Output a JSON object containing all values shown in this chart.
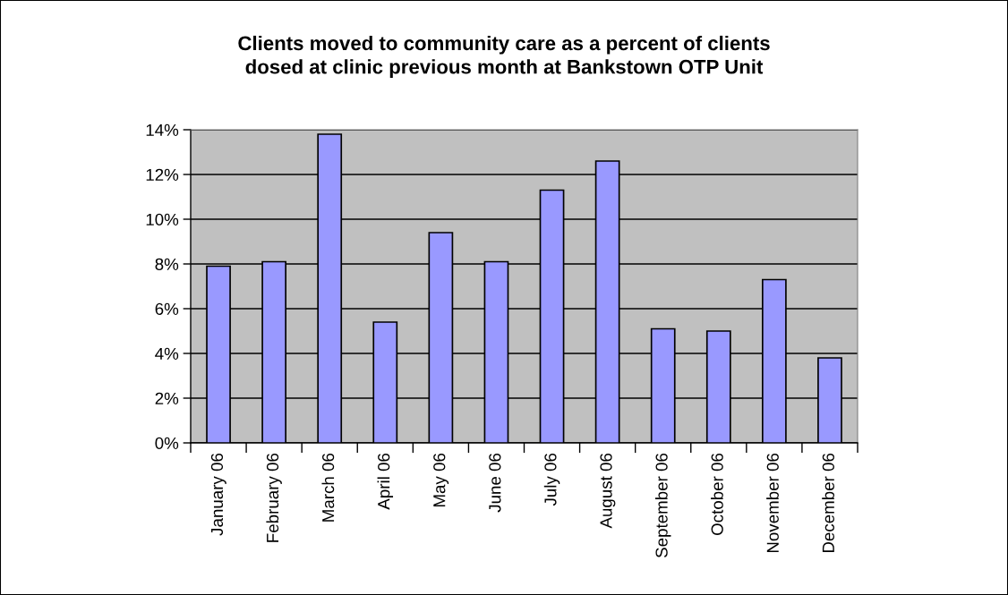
{
  "chart_data": {
    "type": "bar",
    "title": "Clients moved to community care as a percent of clients\ndosed at clinic previous month at Bankstown OTP Unit",
    "categories": [
      "January 06",
      "February 06",
      "March 06",
      "April 06",
      "May 06",
      "June 06",
      "July 06",
      "August 06",
      "September 06",
      "October 06",
      "November 06",
      "December 06"
    ],
    "values": [
      7.9,
      8.1,
      13.8,
      5.4,
      9.4,
      8.1,
      11.3,
      12.6,
      5.1,
      5.0,
      7.3,
      3.8
    ],
    "color": "#9999ff",
    "ylim": [
      0,
      14
    ],
    "yticks": [
      {
        "value": 0,
        "label": "0%"
      },
      {
        "value": 2,
        "label": "2%"
      },
      {
        "value": 4,
        "label": "4%"
      },
      {
        "value": 6,
        "label": "6%"
      },
      {
        "value": 8,
        "label": "8%"
      },
      {
        "value": 10,
        "label": "10%"
      },
      {
        "value": 12,
        "label": "12%"
      },
      {
        "value": 14,
        "label": "14%"
      }
    ],
    "grid": "y"
  }
}
